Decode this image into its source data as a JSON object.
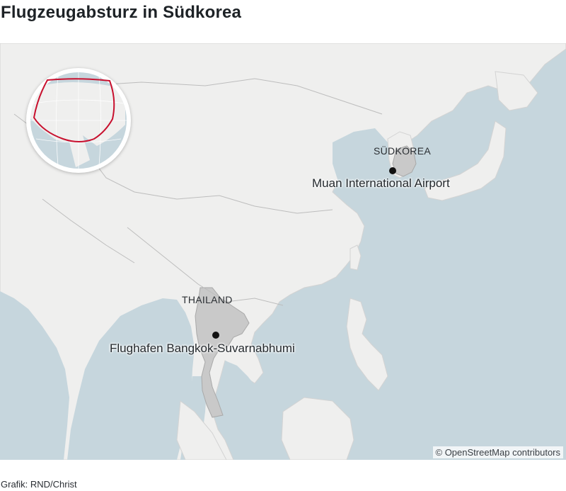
{
  "title": "Flugzeugabsturz in Südkorea",
  "map": {
    "countries": {
      "south_korea": "SÜDKOREA",
      "thailand": "THAILAND"
    },
    "places": {
      "muan": "Muan International Airport",
      "bangkok": "Flughafen Bangkok-Suvarnabhumi"
    },
    "attribution": "© OpenStreetMap contributors",
    "colors": {
      "water": "#c6d6dd",
      "land": "#efefee",
      "highlight": "#c9c9c9",
      "border": "#b8b8b8",
      "globe_frame": "#c8102e",
      "marker": "#111111"
    }
  },
  "credit": "Grafik: RND/Christ"
}
